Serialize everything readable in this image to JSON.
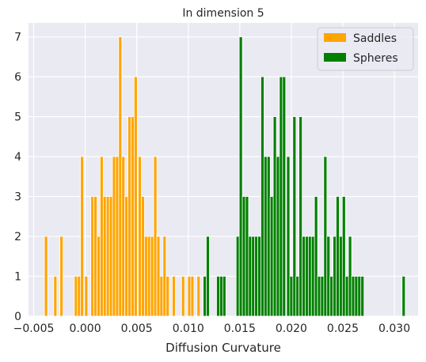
{
  "chart_data": {
    "type": "bar",
    "title": "In dimension 5",
    "xlabel": "Diffusion Curvature",
    "ylabel": "",
    "xlim": [
      -0.0055,
      0.0323
    ],
    "ylim": [
      0,
      7.35
    ],
    "x_ticks": [
      {
        "value": -0.005,
        "label": "−0.005"
      },
      {
        "value": 0.0,
        "label": "0.000"
      },
      {
        "value": 0.005,
        "label": "0.005"
      },
      {
        "value": 0.01,
        "label": "0.010"
      },
      {
        "value": 0.015,
        "label": "0.015"
      },
      {
        "value": 0.02,
        "label": "0.020"
      },
      {
        "value": 0.025,
        "label": "0.025"
      },
      {
        "value": 0.03,
        "label": "0.030"
      }
    ],
    "y_ticks": [
      {
        "value": 0,
        "label": "0"
      },
      {
        "value": 1,
        "label": "1"
      },
      {
        "value": 2,
        "label": "2"
      },
      {
        "value": 3,
        "label": "3"
      },
      {
        "value": 4,
        "label": "4"
      },
      {
        "value": 5,
        "label": "5"
      },
      {
        "value": 6,
        "label": "6"
      },
      {
        "value": 7,
        "label": "7"
      }
    ],
    "grid": true,
    "legend_position": "top-right",
    "bin_width": 0.000307,
    "series": [
      {
        "name": "Saddles",
        "color": "#ffa500",
        "x": [
          -0.0038,
          -0.0029,
          -0.0023,
          -0.0009,
          -0.0006,
          -0.0003,
          0.0001,
          0.0007,
          0.001,
          0.0013,
          0.0016,
          0.0019,
          0.0022,
          0.0025,
          0.0028,
          0.0031,
          0.0034,
          0.0037,
          0.004,
          0.0043,
          0.0046,
          0.0049,
          0.0053,
          0.0056,
          0.0059,
          0.0062,
          0.0065,
          0.0068,
          0.0071,
          0.0074,
          0.0077,
          0.008,
          0.0086,
          0.0095,
          0.0101,
          0.0104,
          0.011
        ],
        "values": [
          2,
          1,
          2,
          1,
          1,
          4,
          1,
          3,
          3,
          2,
          4,
          3,
          3,
          3,
          4,
          4,
          7,
          4,
          3,
          5,
          5,
          6,
          4,
          3,
          2,
          2,
          2,
          4,
          2,
          1,
          2,
          1,
          1,
          1,
          1,
          1,
          1
        ]
      },
      {
        "name": "Spheres",
        "color": "#008000",
        "x": [
          0.0116,
          0.0119,
          0.0129,
          0.0132,
          0.0135,
          0.0148,
          0.0151,
          0.0154,
          0.0157,
          0.016,
          0.0163,
          0.0166,
          0.0169,
          0.0172,
          0.0175,
          0.0178,
          0.0181,
          0.0184,
          0.0187,
          0.019,
          0.0193,
          0.0197,
          0.02,
          0.0203,
          0.0206,
          0.0209,
          0.0212,
          0.0215,
          0.0218,
          0.0221,
          0.0224,
          0.0227,
          0.023,
          0.0233,
          0.0236,
          0.0239,
          0.0242,
          0.0245,
          0.0248,
          0.0251,
          0.0254,
          0.0257,
          0.026,
          0.0263,
          0.0266,
          0.0269,
          0.0309
        ],
        "values": [
          1,
          2,
          1,
          1,
          1,
          2,
          7,
          3,
          3,
          2,
          2,
          2,
          2,
          6,
          4,
          4,
          3,
          5,
          4,
          6,
          6,
          4,
          1,
          5,
          1,
          5,
          2,
          2,
          2,
          2,
          3,
          1,
          1,
          4,
          2,
          1,
          2,
          3,
          2,
          3,
          1,
          2,
          1,
          1,
          1,
          1,
          1
        ]
      }
    ]
  }
}
